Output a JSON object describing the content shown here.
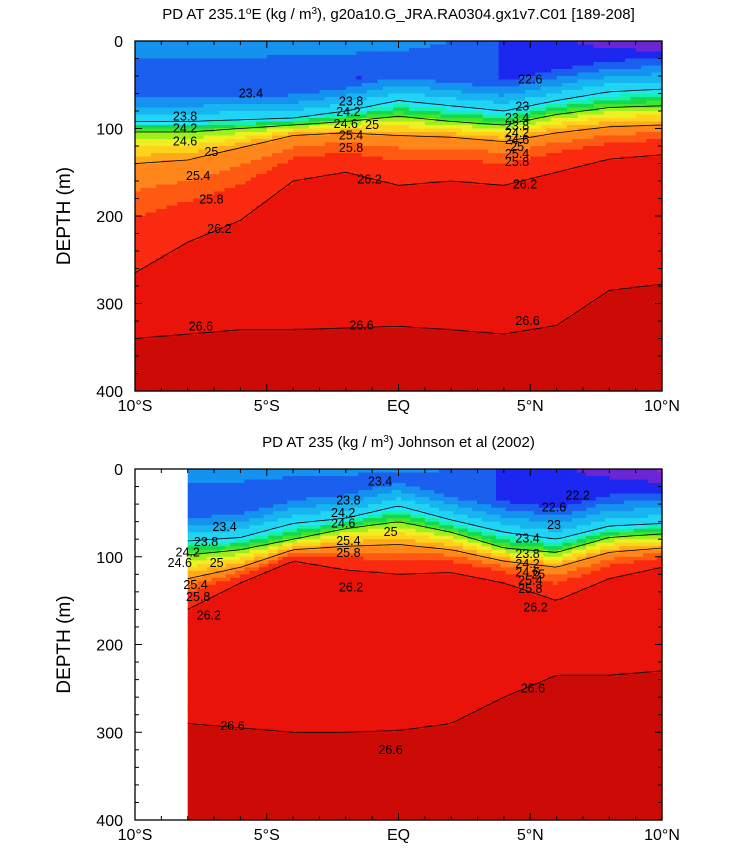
{
  "chart_data": [
    {
      "type": "heatmap",
      "title": "PD AT 235.1°E (kg / m³), g20a10.G_JRA.RA0304.gx1v7.C01 [189-208]",
      "title_parts": [
        "PD AT 235.1",
        "o",
        "E (kg / m",
        "3",
        "), g20a10.G_JRA.RA0304.gx1v7.C01 [189-208]"
      ],
      "ylabel": "DEPTH (m)",
      "xlabel": "",
      "x_ticks": [
        "10°S",
        "5°S",
        "EQ",
        "5°N",
        "10°N"
      ],
      "x_tick_values": [
        -10,
        -5,
        0,
        5,
        10
      ],
      "y_ticks": [
        "0",
        "100",
        "200",
        "300",
        "400"
      ],
      "y_tick_values": [
        0,
        100,
        200,
        300,
        400
      ],
      "xlim": [
        -10,
        10
      ],
      "ylim": [
        0,
        400
      ],
      "y_reversed": true,
      "data_start_lat": -10,
      "contour_levels": [
        22.2,
        22.6,
        23,
        23.4,
        23.8,
        24.2,
        24.6,
        25,
        25.4,
        25.8,
        26.2,
        26.6
      ],
      "isopycnal_depths": {
        "lat": [
          -10,
          -8,
          -6,
          -4,
          -2,
          0,
          2,
          4,
          6,
          8,
          10
        ],
        "23.8": [
          92,
          92,
          90,
          88,
          80,
          68,
          74,
          80,
          68,
          58,
          55
        ],
        "24.6": [
          104,
          104,
          100,
          96,
          92,
          86,
          92,
          96,
          84,
          76,
          74
        ],
        "25.4": [
          140,
          136,
          122,
          108,
          105,
          108,
          110,
          115,
          105,
          98,
          96
        ],
        "26.2": [
          265,
          230,
          205,
          160,
          150,
          165,
          160,
          165,
          150,
          135,
          130
        ],
        "26.6": [
          340,
          335,
          330,
          330,
          328,
          326,
          330,
          335,
          325,
          285,
          278
        ]
      },
      "contour_labels": [
        {
          "text": "23.4",
          "lat": -5.6,
          "depth": 60
        },
        {
          "text": "23.8",
          "lat": -8.1,
          "depth": 86
        },
        {
          "text": "24.2",
          "lat": -8.1,
          "depth": 100
        },
        {
          "text": "24.6",
          "lat": -8.1,
          "depth": 115
        },
        {
          "text": "25",
          "lat": -7.1,
          "depth": 127
        },
        {
          "text": "25.4",
          "lat": -7.6,
          "depth": 154
        },
        {
          "text": "25.8",
          "lat": -7.1,
          "depth": 181
        },
        {
          "text": "26.2",
          "lat": -6.8,
          "depth": 215
        },
        {
          "text": "26.6",
          "lat": -7.5,
          "depth": 326
        },
        {
          "text": "23.8",
          "lat": -1.8,
          "depth": 69
        },
        {
          "text": "24.2",
          "lat": -1.9,
          "depth": 81
        },
        {
          "text": "24.6",
          "lat": -2.0,
          "depth": 95
        },
        {
          "text": "25",
          "lat": -1.0,
          "depth": 96
        },
        {
          "text": "25.4",
          "lat": -1.8,
          "depth": 108
        },
        {
          "text": "25.8",
          "lat": -1.8,
          "depth": 122
        },
        {
          "text": "26.2",
          "lat": -1.1,
          "depth": 158
        },
        {
          "text": "26.6",
          "lat": -1.4,
          "depth": 325
        },
        {
          "text": "22.6",
          "lat": 5.0,
          "depth": 44
        },
        {
          "text": "23",
          "lat": 4.7,
          "depth": 75
        },
        {
          "text": "23.4",
          "lat": 4.5,
          "depth": 88
        },
        {
          "text": "23.8",
          "lat": 4.5,
          "depth": 97
        },
        {
          "text": "24.2",
          "lat": 4.5,
          "depth": 105
        },
        {
          "text": "24.6",
          "lat": 4.5,
          "depth": 113
        },
        {
          "text": "25",
          "lat": 4.5,
          "depth": 121
        },
        {
          "text": "25.4",
          "lat": 4.5,
          "depth": 129
        },
        {
          "text": "25.8",
          "lat": 4.5,
          "depth": 138
        },
        {
          "text": "26.2",
          "lat": 4.8,
          "depth": 164
        },
        {
          "text": "26.6",
          "lat": 4.9,
          "depth": 320
        }
      ]
    },
    {
      "type": "heatmap",
      "title": "PD AT 235 (kg / m³) Johnson et al (2002)",
      "title_parts": [
        "PD AT 235 (kg / m",
        "3",
        ") Johnson et al (2002)"
      ],
      "ylabel": "DEPTH (m)",
      "xlabel": "",
      "x_ticks": [
        "10°S",
        "5°S",
        "EQ",
        "5°N",
        "10°N"
      ],
      "x_tick_values": [
        -10,
        -5,
        0,
        5,
        10
      ],
      "y_ticks": [
        "0",
        "100",
        "200",
        "300",
        "400"
      ],
      "y_tick_values": [
        0,
        100,
        200,
        300,
        400
      ],
      "xlim": [
        -10,
        10
      ],
      "ylim": [
        0,
        400
      ],
      "y_reversed": true,
      "data_start_lat": -8,
      "contour_levels": [
        22.2,
        22.6,
        23,
        23.4,
        23.8,
        24.2,
        24.6,
        25,
        25.4,
        25.8,
        26.2,
        26.6
      ],
      "isopycnal_depths": {
        "lat": [
          -8,
          -6,
          -4,
          -2,
          0,
          2,
          4,
          6,
          8,
          10
        ],
        "23.8": [
          82,
          78,
          62,
          56,
          42,
          58,
          72,
          80,
          65,
          62
        ],
        "24.6": [
          98,
          92,
          80,
          68,
          60,
          72,
          90,
          95,
          78,
          74
        ],
        "25.4": [
          125,
          112,
          92,
          88,
          86,
          92,
          105,
          112,
          95,
          90
        ],
        "26.2": [
          160,
          130,
          105,
          115,
          120,
          118,
          130,
          150,
          125,
          112
        ],
        "26.6": [
          290,
          295,
          300,
          300,
          298,
          290,
          260,
          235,
          235,
          230
        ]
      },
      "contour_labels": [
        {
          "text": "23.4",
          "lat": -6.6,
          "depth": 66
        },
        {
          "text": "23.8",
          "lat": -7.3,
          "depth": 83
        },
        {
          "text": "24.2",
          "lat": -8.0,
          "depth": 95
        },
        {
          "text": "24.6",
          "lat": -8.3,
          "depth": 107
        },
        {
          "text": "25",
          "lat": -6.9,
          "depth": 107
        },
        {
          "text": "25.4",
          "lat": -7.7,
          "depth": 132
        },
        {
          "text": "25.8",
          "lat": -7.6,
          "depth": 146
        },
        {
          "text": "26.2",
          "lat": -7.2,
          "depth": 167
        },
        {
          "text": "26.6",
          "lat": -6.3,
          "depth": 293
        },
        {
          "text": "23.4",
          "lat": -0.7,
          "depth": 14
        },
        {
          "text": "23.8",
          "lat": -1.9,
          "depth": 36
        },
        {
          "text": "24.2",
          "lat": -2.1,
          "depth": 50
        },
        {
          "text": "24.6",
          "lat": -2.1,
          "depth": 62
        },
        {
          "text": "25",
          "lat": -0.3,
          "depth": 72
        },
        {
          "text": "25.4",
          "lat": -1.9,
          "depth": 82
        },
        {
          "text": "25.8",
          "lat": -1.9,
          "depth": 96
        },
        {
          "text": "26.2",
          "lat": -1.8,
          "depth": 135
        },
        {
          "text": "26.6",
          "lat": -0.3,
          "depth": 320
        },
        {
          "text": "22.6",
          "lat": 5.9,
          "depth": 44
        },
        {
          "text": "22.2",
          "lat": 6.8,
          "depth": 30
        },
        {
          "text": "23",
          "lat": 5.9,
          "depth": 64
        },
        {
          "text": "23.4",
          "lat": 4.9,
          "depth": 79
        },
        {
          "text": "23.8",
          "lat": 4.9,
          "depth": 97
        },
        {
          "text": "24.2",
          "lat": 4.9,
          "depth": 108
        },
        {
          "text": "24.6",
          "lat": 4.9,
          "depth": 118
        },
        {
          "text": "25",
          "lat": 5.3,
          "depth": 120
        },
        {
          "text": "25.4",
          "lat": 5.0,
          "depth": 127
        },
        {
          "text": "25.8",
          "lat": 5.0,
          "depth": 137
        },
        {
          "text": "26.2",
          "lat": 5.2,
          "depth": 158
        },
        {
          "text": "26.6",
          "lat": 5.1,
          "depth": 250
        }
      ]
    }
  ],
  "colors": {
    "cmap": [
      "#a51ed8",
      "#6a26d5",
      "#1c27f0",
      "#1a5fee",
      "#1592ef",
      "#17b4f0",
      "#1fd4f4",
      "#22e6f8",
      "#16f0a8",
      "#15d84c",
      "#3fe62a",
      "#9ef01c",
      "#eef022",
      "#ffd21c",
      "#ffaa18",
      "#ff861a",
      "#ff5a12",
      "#f92a10",
      "#ea130a",
      "#cc0a06"
    ],
    "levels": [
      22.2,
      22.6,
      23,
      23.2,
      23.4,
      23.6,
      23.8,
      24.0,
      24.2,
      24.4,
      24.6,
      24.8,
      25,
      25.2,
      25.4,
      25.6,
      25.8,
      26.2,
      26.6
    ]
  }
}
